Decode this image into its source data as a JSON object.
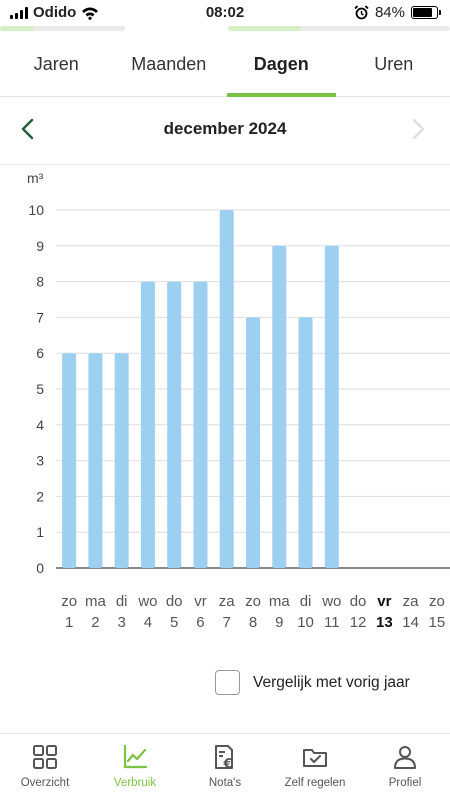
{
  "status_bar": {
    "carrier": "Odido",
    "time": "08:02",
    "battery": "84%",
    "battery_level": 0.84
  },
  "progress_strips": [
    0.27,
    0.33
  ],
  "tabs": [
    {
      "label": "Jaren",
      "active": false
    },
    {
      "label": "Maanden",
      "active": false
    },
    {
      "label": "Dagen",
      "active": true
    },
    {
      "label": "Uren",
      "active": false
    }
  ],
  "month_nav": {
    "title": "december 2024"
  },
  "chart_data": {
    "type": "bar",
    "unit": "m³",
    "ylim": [
      0,
      10
    ],
    "yticks": [
      0,
      1,
      2,
      3,
      4,
      5,
      6,
      7,
      8,
      9,
      10
    ],
    "grid": true,
    "bar_color": "#9dcff0",
    "days": [
      {
        "weekday": "zo",
        "day": "1",
        "value": 6
      },
      {
        "weekday": "ma",
        "day": "2",
        "value": 6
      },
      {
        "weekday": "di",
        "day": "3",
        "value": 6
      },
      {
        "weekday": "wo",
        "day": "4",
        "value": 8
      },
      {
        "weekday": "do",
        "day": "5",
        "value": 8
      },
      {
        "weekday": "vr",
        "day": "6",
        "value": 8
      },
      {
        "weekday": "za",
        "day": "7",
        "value": 10
      },
      {
        "weekday": "zo",
        "day": "8",
        "value": 7
      },
      {
        "weekday": "ma",
        "day": "9",
        "value": 9
      },
      {
        "weekday": "di",
        "day": "10",
        "value": 7
      },
      {
        "weekday": "wo",
        "day": "11",
        "value": 9
      },
      {
        "weekday": "do",
        "day": "12",
        "value": null
      },
      {
        "weekday": "vr",
        "day": "13",
        "value": null,
        "today": true
      },
      {
        "weekday": "za",
        "day": "14",
        "value": null
      },
      {
        "weekday": "zo",
        "day": "15",
        "value": null
      }
    ]
  },
  "compare": {
    "label": "Vergelijk met vorig jaar",
    "checked": false
  },
  "bottom_nav": [
    {
      "label": "Overzicht",
      "icon": "grid-icon",
      "active": false
    },
    {
      "label": "Verbruik",
      "icon": "chart-icon",
      "active": true
    },
    {
      "label": "Nota's",
      "icon": "invoice-icon",
      "active": false
    },
    {
      "label": "Zelf regelen",
      "icon": "folder-check-icon",
      "active": false
    },
    {
      "label": "Profiel",
      "icon": "person-icon",
      "active": false
    }
  ],
  "colors": {
    "accent": "#7cc242",
    "bar": "#9dcff0",
    "nav_arrow": "#1f5e3a"
  }
}
